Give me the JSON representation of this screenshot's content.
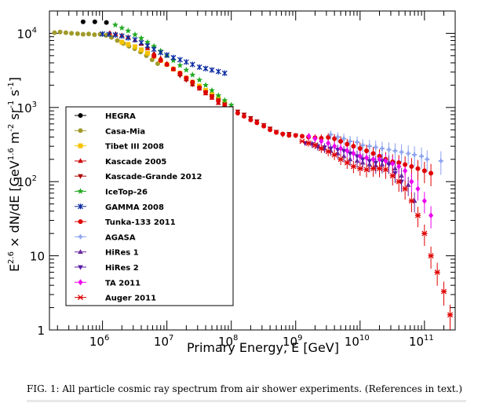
{
  "caption": "FIG. 1: All particle cosmic ray spectrum from air shower experiments. (References in text.)",
  "chart_data": {
    "type": "scatter",
    "xlabel": "Primary Energy, E [GeV]",
    "ylabel": "E^2.6 × dN/dE [GeV^1.6 m^-2 sr^-1 s^-1]",
    "xscale": "log",
    "yscale": "log",
    "xlim": [
      150000,
      300000000000
    ],
    "ylim": [
      1,
      20000
    ],
    "x_tick_labels": [
      {
        "value": 1000000,
        "base": "10",
        "exp": "6"
      },
      {
        "value": 10000000,
        "base": "10",
        "exp": "7"
      },
      {
        "value": 100000000,
        "base": "10",
        "exp": "8"
      },
      {
        "value": 1000000000,
        "base": "10",
        "exp": "9"
      },
      {
        "value": 10000000000,
        "base": "10",
        "exp": "10"
      },
      {
        "value": 100000000000,
        "base": "10",
        "exp": "11"
      }
    ],
    "y_tick_labels": [
      {
        "value": 1,
        "base": "1",
        "exp": ""
      },
      {
        "value": 10,
        "base": "10",
        "exp": ""
      },
      {
        "value": 100,
        "base": "10",
        "exp": "2"
      },
      {
        "value": 1000,
        "base": "10",
        "exp": "3"
      },
      {
        "value": 10000,
        "base": "10",
        "exp": "4"
      }
    ],
    "legend_position": "left-center",
    "series": [
      {
        "name": "HEGRA",
        "color": "#000000",
        "marker": "circle",
        "points": [
          [
            500000,
            14300
          ],
          [
            760000,
            14300
          ],
          [
            1150000,
            14000
          ]
        ]
      },
      {
        "name": "Casa-Mia",
        "color": "#a09a2a",
        "marker": "circle",
        "points": [
          [
            180000,
            10200
          ],
          [
            220000,
            10400
          ],
          [
            270000,
            10200
          ],
          [
            330000,
            10000
          ],
          [
            410000,
            9900
          ],
          [
            500000,
            9700
          ],
          [
            610000,
            9800
          ],
          [
            750000,
            9600
          ],
          [
            920000,
            9700
          ],
          [
            1130000,
            9400
          ],
          [
            1380000,
            8800
          ],
          [
            1700000,
            8000
          ],
          [
            2100000,
            7300
          ],
          [
            2580000,
            6700
          ],
          [
            3160000,
            6200
          ],
          [
            3900000,
            5600
          ],
          [
            4800000,
            5000
          ],
          [
            5900000,
            4400
          ],
          [
            7200000,
            3900
          ]
        ]
      },
      {
        "name": "Tibet III 2008",
        "color": "#f5c200",
        "marker": "square",
        "points": [
          [
            2000000,
            7600
          ],
          [
            2500000,
            7100
          ],
          [
            3200000,
            6600
          ],
          [
            4000000,
            6000
          ],
          [
            5000000,
            5400
          ],
          [
            6300000,
            4900
          ],
          [
            8000000,
            4300
          ],
          [
            10000000,
            3800
          ],
          [
            12600000,
            3300
          ],
          [
            16000000,
            2900
          ],
          [
            20000000,
            2500
          ],
          [
            25000000,
            2200
          ],
          [
            32000000,
            1950
          ],
          [
            40000000,
            1700
          ],
          [
            50000000,
            1500
          ],
          [
            63000000,
            1320
          ],
          [
            79000000,
            1150
          ]
        ]
      },
      {
        "name": "Kascade 2005",
        "color": "#cc0000",
        "marker": "triangle-up",
        "points": [
          [
            1300000,
            10100
          ],
          [
            1600000,
            9800
          ],
          [
            2000000,
            9400
          ],
          [
            2500000,
            8900
          ],
          [
            3200000,
            8100
          ],
          [
            4000000,
            7200
          ],
          [
            5000000,
            6300
          ],
          [
            6300000,
            5400
          ],
          [
            8000000,
            4600
          ],
          [
            10000000,
            3900
          ],
          [
            12600000,
            3300
          ],
          [
            16000000,
            2800
          ],
          [
            20000000,
            2400
          ],
          [
            25000000,
            2050
          ],
          [
            32000000,
            1800
          ],
          [
            40000000,
            1550
          ],
          [
            50000000,
            1350
          ],
          [
            63000000,
            1150
          ],
          [
            79000000,
            980
          ]
        ]
      },
      {
        "name": "Kascade-Grande 2012",
        "color": "#aa0000",
        "marker": "triangle-down",
        "points": [
          [
            16000000,
            2700
          ],
          [
            20000000,
            2350
          ],
          [
            25000000,
            2050
          ],
          [
            32000000,
            1820
          ],
          [
            40000000,
            1600
          ],
          [
            50000000,
            1420
          ],
          [
            63000000,
            1250
          ],
          [
            79000000,
            1100
          ],
          [
            100000000,
            980
          ],
          [
            126000000,
            880
          ],
          [
            158000000,
            800
          ],
          [
            200000000,
            720
          ],
          [
            250000000,
            650
          ],
          [
            320000000,
            580
          ],
          [
            400000000,
            520
          ],
          [
            500000000,
            470
          ],
          [
            630000000,
            430
          ],
          [
            790000000,
            440
          ],
          [
            1000000000,
            420
          ]
        ]
      },
      {
        "name": "IceTop-26",
        "color": "#22aa22",
        "marker": "star",
        "points": [
          [
            1580000,
            13000
          ],
          [
            2000000,
            11800
          ],
          [
            2500000,
            10800
          ],
          [
            3200000,
            9600
          ],
          [
            4000000,
            8600
          ],
          [
            5000000,
            7600
          ],
          [
            6300000,
            6700
          ],
          [
            8000000,
            5800
          ],
          [
            10000000,
            5000
          ],
          [
            12600000,
            4300
          ],
          [
            16000000,
            3700
          ],
          [
            20000000,
            3200
          ],
          [
            25000000,
            2750
          ],
          [
            32000000,
            2350
          ],
          [
            40000000,
            2000
          ],
          [
            50000000,
            1700
          ],
          [
            63000000,
            1450
          ],
          [
            79000000,
            1250
          ],
          [
            100000000,
            1080
          ]
        ]
      },
      {
        "name": "GAMMA 2008",
        "color": "#0a2aa0",
        "marker": "asterisk",
        "points": [
          [
            1000000,
            9800
          ],
          [
            1260000,
            9700
          ],
          [
            1580000,
            9500
          ],
          [
            2000000,
            9200
          ],
          [
            2500000,
            8700
          ],
          [
            3200000,
            8200
          ],
          [
            4000000,
            7500
          ],
          [
            5000000,
            6800
          ],
          [
            6300000,
            6100
          ],
          [
            8000000,
            5500
          ],
          [
            10000000,
            5100
          ],
          [
            12600000,
            4700
          ],
          [
            16000000,
            4400
          ],
          [
            20000000,
            4100
          ],
          [
            25000000,
            3800
          ],
          [
            32000000,
            3500
          ],
          [
            40000000,
            3350
          ],
          [
            50000000,
            3200
          ],
          [
            63000000,
            3050
          ],
          [
            79000000,
            2900
          ]
        ]
      },
      {
        "name": "Tunka-133 2011",
        "color": "#e00000",
        "marker": "circle",
        "points": [
          [
            6300000,
            4900
          ],
          [
            8000000,
            4300
          ],
          [
            10000000,
            3800
          ],
          [
            12600000,
            3300
          ],
          [
            16000000,
            2900
          ],
          [
            20000000,
            2500
          ],
          [
            25000000,
            2200
          ],
          [
            32000000,
            1850
          ],
          [
            40000000,
            1600
          ],
          [
            50000000,
            1400
          ],
          [
            63000000,
            1220
          ],
          [
            79000000,
            1070
          ],
          [
            100000000,
            940
          ],
          [
            126000000,
            840
          ],
          [
            158000000,
            760
          ],
          [
            200000000,
            680
          ],
          [
            250000000,
            620
          ],
          [
            320000000,
            560
          ],
          [
            400000000,
            500
          ],
          [
            500000000,
            460
          ],
          [
            630000000,
            440
          ],
          [
            790000000,
            420
          ],
          [
            1000000000,
            420
          ],
          [
            1260000000,
            410
          ],
          [
            1580000000,
            400
          ],
          [
            2000000000,
            390
          ],
          [
            2500000000,
            385
          ],
          [
            3200000000,
            395
          ],
          [
            4000000000,
            380
          ],
          [
            5000000000,
            350
          ],
          [
            6300000000,
            320
          ],
          [
            7900000000,
            300
          ],
          [
            10000000000,
            280
          ],
          [
            12600000000,
            260
          ],
          [
            16000000000,
            240
          ],
          [
            20000000000,
            220
          ],
          [
            25000000000,
            200
          ],
          [
            32000000000,
            185
          ],
          [
            40000000000,
            180
          ],
          [
            50000000000,
            170
          ],
          [
            63000000000,
            160
          ],
          [
            79000000000,
            150
          ],
          [
            100000000000,
            140
          ],
          [
            126000000000,
            130
          ]
        ]
      },
      {
        "name": "AGASA",
        "color": "#8aa0ee",
        "marker": "plus",
        "points": [
          [
            3500000000,
            430
          ],
          [
            4500000000,
            400
          ],
          [
            5600000000,
            380
          ],
          [
            7000000000,
            350
          ],
          [
            9000000000,
            340
          ],
          [
            11000000000,
            310
          ],
          [
            14000000000,
            300
          ],
          [
            17500000000,
            290
          ],
          [
            22000000000,
            280
          ],
          [
            28000000000,
            270
          ],
          [
            35000000000,
            260
          ],
          [
            44000000000,
            250
          ],
          [
            56000000000,
            240
          ],
          [
            70000000000,
            230
          ],
          [
            90000000000,
            220
          ],
          [
            110000000000,
            200
          ],
          [
            180000000000,
            190
          ]
        ]
      },
      {
        "name": "HiRes 1",
        "color": "#6a2aa0",
        "marker": "triangle-up",
        "points": [
          [
            2200000000,
            300
          ],
          [
            2800000000,
            280
          ],
          [
            3500000000,
            260
          ],
          [
            4500000000,
            240
          ],
          [
            5600000000,
            220
          ],
          [
            7000000000,
            200
          ],
          [
            9000000000,
            190
          ],
          [
            11000000000,
            180
          ],
          [
            14000000000,
            170
          ],
          [
            17500000000,
            165
          ],
          [
            22000000000,
            170
          ],
          [
            28000000000,
            180
          ],
          [
            35000000000,
            150
          ],
          [
            44000000000,
            120
          ],
          [
            56000000000,
            90
          ],
          [
            70000000000,
            55
          ]
        ]
      },
      {
        "name": "HiRes 2",
        "color": "#5a1aa8",
        "marker": "triangle-down",
        "points": [
          [
            1400000000,
            330
          ],
          [
            1800000000,
            320
          ],
          [
            2200000000,
            300
          ],
          [
            2800000000,
            290
          ],
          [
            3500000000,
            280
          ],
          [
            4500000000,
            270
          ],
          [
            5600000000,
            260
          ],
          [
            7000000000,
            240
          ],
          [
            9000000000,
            220
          ],
          [
            11000000000,
            200
          ],
          [
            14000000000,
            190
          ],
          [
            17500000000,
            180
          ],
          [
            22000000000,
            190
          ],
          [
            28000000000,
            170
          ],
          [
            35000000000,
            130
          ],
          [
            44000000000,
            100
          ]
        ]
      },
      {
        "name": "TA 2011",
        "color": "#ee00ee",
        "marker": "diamond",
        "points": [
          [
            1600000000,
            410
          ],
          [
            2000000000,
            380
          ],
          [
            2500000000,
            350
          ],
          [
            3200000000,
            330
          ],
          [
            4000000000,
            300
          ],
          [
            5000000000,
            280
          ],
          [
            6300000000,
            260
          ],
          [
            7900000000,
            240
          ],
          [
            10000000000,
            220
          ],
          [
            12600000000,
            210
          ],
          [
            16000000000,
            200
          ],
          [
            20000000000,
            200
          ],
          [
            25000000000,
            190
          ],
          [
            32000000000,
            175
          ],
          [
            40000000000,
            160
          ],
          [
            50000000000,
            140
          ],
          [
            63000000000,
            100
          ],
          [
            79000000000,
            80
          ],
          [
            100000000000,
            55
          ],
          [
            126000000000,
            35
          ]
        ]
      },
      {
        "name": "Auger 2011",
        "color": "#e00000",
        "marker": "cross",
        "points": [
          [
            1260000000,
            350
          ],
          [
            1580000000,
            330
          ],
          [
            2000000000,
            310
          ],
          [
            2500000000,
            280
          ],
          [
            3200000000,
            255
          ],
          [
            4000000000,
            230
          ],
          [
            5000000000,
            200
          ],
          [
            6300000000,
            180
          ],
          [
            7900000000,
            160
          ],
          [
            10000000000,
            150
          ],
          [
            12600000000,
            145
          ],
          [
            16000000000,
            150
          ],
          [
            20000000000,
            150
          ],
          [
            25000000000,
            145
          ],
          [
            32000000000,
            120
          ],
          [
            40000000000,
            100
          ],
          [
            50000000000,
            80
          ],
          [
            63000000000,
            55
          ],
          [
            79000000000,
            35
          ],
          [
            100000000000,
            20
          ],
          [
            126000000000,
            10
          ],
          [
            158000000000,
            6
          ],
          [
            200000000000,
            3.3
          ],
          [
            250000000000,
            1.6
          ]
        ]
      }
    ]
  }
}
